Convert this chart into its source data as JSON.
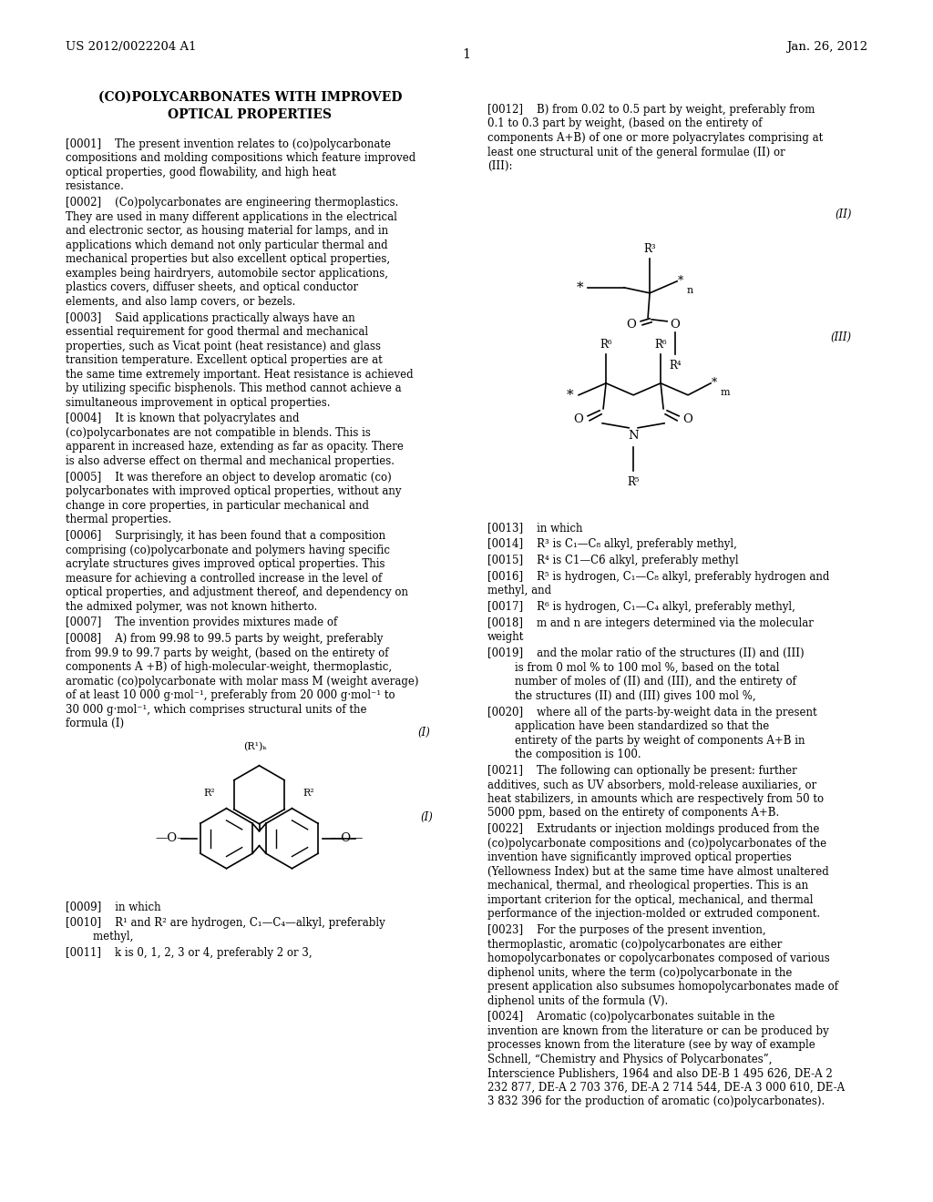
{
  "background_color": "#ffffff",
  "header_left": "US 2012/0022204 A1",
  "header_right": "Jan. 26, 2012",
  "page_number": "1",
  "title_line1": "(CO)POLYCARBONATES WITH IMPROVED",
  "title_line2": "OPTICAL PROPERTIES",
  "paragraphs_left": [
    [
      "[0001]",
      "The present invention relates to (co)polycarbonate compositions and molding compositions which feature improved optical properties, good flowability, and high heat resistance."
    ],
    [
      "[0002]",
      "(Co)polycarbonates are engineering thermoplastics. They are used in many different applications in the electrical and electronic sector, as housing material for lamps, and in applications which demand not only particular thermal and mechanical properties but also excellent optical properties, examples being hairdryers, automobile sector applications, plastics covers, diffuser sheets, and optical conductor elements, and also lamp covers, or bezels."
    ],
    [
      "[0003]",
      "Said applications practically always have an essential requirement for good thermal and mechanical properties, such as Vicat point (heat resistance) and glass transition temperature. Excellent optical properties are at the same time extremely important. Heat resistance is achieved by utilizing specific bisphenols. This method cannot achieve a simultaneous improvement in optical properties."
    ],
    [
      "[0004]",
      "It is known that polyacrylates and (co)polycarbonates are not compatible in blends. This is apparent in increased haze, extending as far as opacity. There is also adverse effect on thermal and mechanical properties."
    ],
    [
      "[0005]",
      "It was therefore an object to develop aromatic (co) polycarbonates with improved optical properties, without any change in core properties, in particular mechanical and thermal properties."
    ],
    [
      "[0006]",
      "Surprisingly, it has been found that a composition comprising (co)polycarbonate and polymers having specific acrylate structures gives improved optical properties. This measure for achieving a controlled increase in the level of optical properties, and adjustment thereof, and dependency on the admixed polymer, was not known hitherto."
    ],
    [
      "[0007]",
      "The invention provides mixtures made of"
    ],
    [
      "[0008]",
      "A) from 99.98 to 99.5 parts by weight, preferably from 99.9 to 99.7 parts by weight, (based on the entirety of components A +B) of high-molecular-weight, thermoplastic, aromatic (co)polycarbonate with molar mass M (weight average) of at least 10 000 g·mol⁻¹, preferably from 20 000 g·mol⁻¹ to 30 000 g·mol⁻¹, which comprises structural units of the formula (I)"
    ]
  ],
  "paragraphs_left_after": [
    [
      "[0009]",
      "in which"
    ],
    [
      "    [0010]",
      "R¹ and R² are hydrogen, C₁—C₄—alkyl, preferably methyl,"
    ],
    [
      "    [0011]",
      "k is 0, 1, 2, 3 or 4, preferably 2 or 3,"
    ]
  ],
  "paragraphs_right_top": [
    [
      "[0012]",
      "B) from 0.02 to 0.5 part by weight, preferably from 0.1 to 0.3 part by weight, (based on the entirety of components A+B) of one or more polyacrylates comprising at least one structural unit of the general formulae (II) or (III):"
    ]
  ],
  "paragraphs_right_bottom": [
    [
      "[0013]",
      "in which"
    ],
    [
      "[0014]",
      "R³ is C₁—C₈ alkyl, preferably methyl,"
    ],
    [
      "[0015]",
      "R⁴ is C1—C6 alkyl, preferably methyl"
    ],
    [
      "[0016]",
      "R⁵ is hydrogen, C₁—C₈ alkyl, preferably hydrogen and methyl, and"
    ],
    [
      "[0017]",
      "R⁶ is hydrogen, C₁—C₄ alkyl, preferably methyl,"
    ],
    [
      "[0018]",
      "m and n are integers determined via the molecular weight"
    ],
    [
      "    [0019]",
      "and the molar ratio of the structures (II) and (III) is from 0 mol % to 100 mol %, based on the total number of moles of (II) and (III), and the entirety of the structures (II) and (III) gives 100 mol %,"
    ],
    [
      "    [0020]",
      "where all of the parts-by-weight data in the present application have been standardized so that the entirety of the parts by weight of components A+B in the composition is 100."
    ],
    [
      "[0021]",
      "The following can optionally be present: further additives, such as UV absorbers, mold-release auxiliaries, or heat stabilizers, in amounts which are respectively from 50 to 5000 ppm, based on the entirety of components A+B."
    ],
    [
      "[0022]",
      "Extrudants or injection moldings produced from the (co)polycarbonate compositions and (co)polycarbonates of the invention have significantly improved optical properties (Yellowness Index) but at the same time have almost unaltered mechanical, thermal, and rheological properties. This is an important criterion for the optical, mechanical, and thermal performance of the injection-molded or extruded component."
    ],
    [
      "[0023]",
      "For the purposes of the present invention, thermoplastic, aromatic (co)polycarbonates are either homopolycarbonates or copolycarbonates composed of various diphenol units, where the term (co)polycarbonate in the present application also subsumes homopolycarbonates made of diphenol units of the formula (V)."
    ],
    [
      "[0024]",
      "Aromatic (co)polycarbonates suitable in the invention are known from the literature or can be produced by processes known from the literature (see by way of example Schnell, “Chemistry and Physics of Polycarbonates”, Interscience Publishers, 1964 and also DE-B 1 495 626, DE-A 2 232 877, DE-A 2 703 376, DE-A 2 714 544, DE-A 3 000 610, DE-A 3 832 396 for the production of aromatic (co)polycarbonates)."
    ]
  ]
}
